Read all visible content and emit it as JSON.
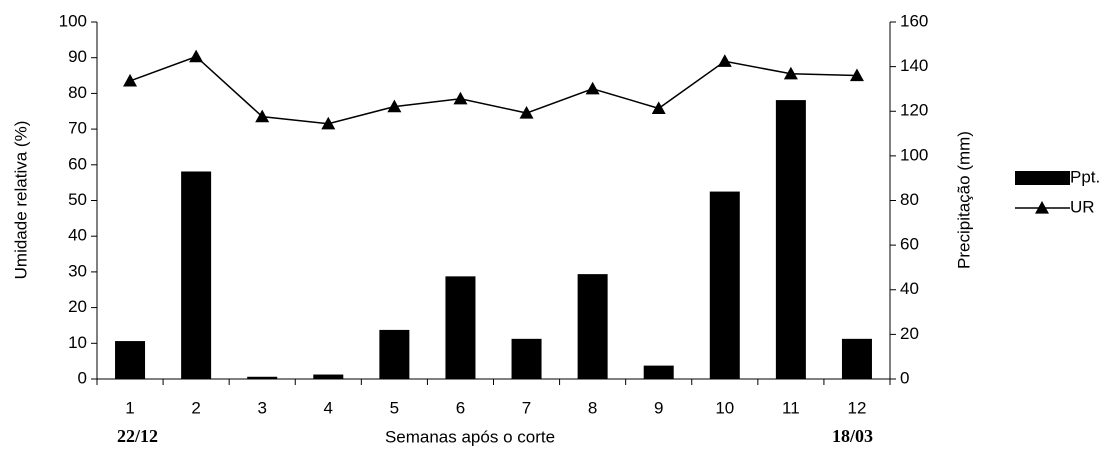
{
  "chart_data": {
    "type": "bar-line",
    "x_label": "Semanas após o corte",
    "y_label": "Umidade relativa (%)",
    "y2_label": "Precipitação (mm)",
    "categories": [
      "1",
      "2",
      "3",
      "4",
      "5",
      "6",
      "7",
      "8",
      "9",
      "10",
      "11",
      "12"
    ],
    "annotations": [
      "22/12",
      "18/03"
    ],
    "series": [
      {
        "name": "Ppt.",
        "type": "bar",
        "axis": "y2",
        "color": "#000000",
        "values": [
          17,
          93,
          1,
          2,
          22,
          46,
          18,
          47,
          6,
          84,
          125,
          18
        ]
      },
      {
        "name": "UR",
        "type": "line",
        "axis": "y",
        "color": "#000000",
        "marker": "triangle",
        "values": [
          83.5,
          90.3,
          73.5,
          71.5,
          76.3,
          78.5,
          74.5,
          81.3,
          75.8,
          89,
          85.5,
          85
        ]
      }
    ],
    "ylim": [
      0,
      100
    ],
    "yticks": [
      0,
      10,
      20,
      30,
      40,
      50,
      60,
      70,
      80,
      90,
      100
    ],
    "y2lim": [
      0,
      160
    ],
    "y2ticks": [
      0,
      20,
      40,
      60,
      80,
      100,
      120,
      140,
      160
    ],
    "grid": false,
    "legend": "right"
  }
}
